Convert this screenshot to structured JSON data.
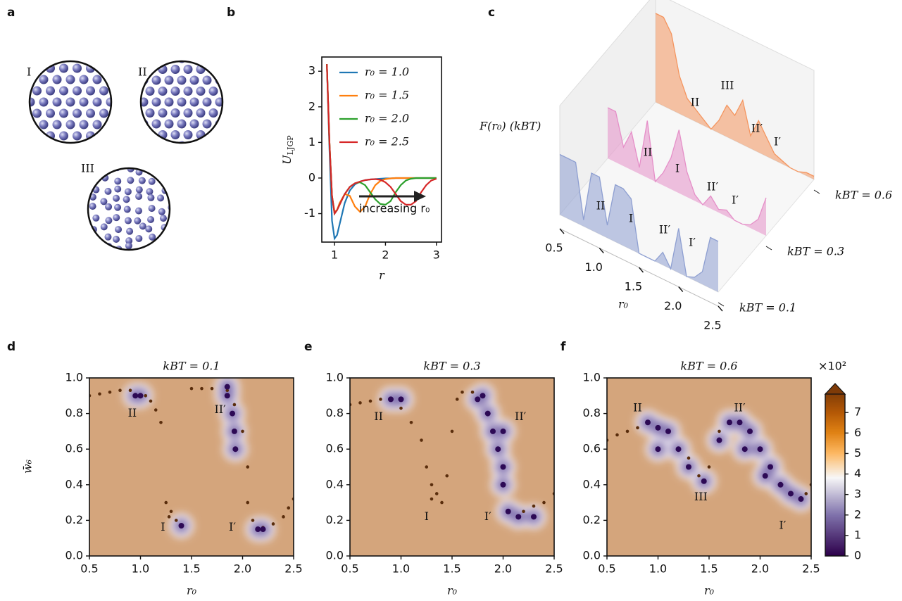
{
  "panel_labels": [
    "a",
    "b",
    "c",
    "d",
    "e",
    "f"
  ],
  "diagram": {
    "labels": [
      "I",
      "II",
      "III"
    ]
  },
  "chart_data": [
    {
      "type": "line",
      "ylabel": [
        "U",
        "LJGP"
      ],
      "xlabel": "r",
      "annotation": "increasing r₀",
      "x": [
        0.85,
        0.9,
        0.95,
        1.0,
        1.05,
        1.1,
        1.2,
        1.3,
        1.4,
        1.5,
        1.6,
        1.7,
        1.8,
        1.9,
        2.0,
        2.1,
        2.2,
        2.3,
        2.4,
        2.5,
        2.6,
        2.7,
        2.8,
        2.9,
        3.0
      ],
      "series": [
        {
          "name": "r₀ = 1.0",
          "color": "#1f77b4",
          "values": [
            3.2,
            0.8,
            -1.2,
            -1.7,
            -1.6,
            -1.3,
            -0.7,
            -0.35,
            -0.18,
            -0.1,
            -0.06,
            -0.04,
            -0.03,
            -0.02,
            -0.01,
            -0.01,
            0,
            0,
            0,
            0,
            0,
            0,
            0,
            0,
            0
          ]
        },
        {
          "name": "r₀ = 1.5",
          "color": "#ff7f0e",
          "values": [
            3.2,
            1.0,
            -0.5,
            -0.95,
            -0.9,
            -0.7,
            -0.45,
            -0.5,
            -0.8,
            -0.95,
            -0.8,
            -0.45,
            -0.2,
            -0.08,
            -0.03,
            -0.01,
            0,
            0,
            0,
            0,
            0,
            0,
            0,
            0,
            0
          ]
        },
        {
          "name": "r₀ = 2.0",
          "color": "#2ca02c",
          "values": [
            3.2,
            1.0,
            -0.5,
            -1.0,
            -0.9,
            -0.75,
            -0.45,
            -0.25,
            -0.15,
            -0.12,
            -0.2,
            -0.4,
            -0.6,
            -0.73,
            -0.75,
            -0.65,
            -0.4,
            -0.2,
            -0.07,
            -0.02,
            0,
            0,
            0,
            0,
            0
          ]
        },
        {
          "name": "r₀ = 2.5",
          "color": "#d62728",
          "values": [
            3.2,
            1.0,
            -0.5,
            -1.0,
            -0.9,
            -0.75,
            -0.45,
            -0.25,
            -0.15,
            -0.1,
            -0.06,
            -0.04,
            -0.03,
            -0.05,
            -0.12,
            -0.25,
            -0.45,
            -0.65,
            -0.75,
            -0.75,
            -0.65,
            -0.4,
            -0.2,
            -0.07,
            -0.02
          ]
        }
      ],
      "xlim": [
        0.75,
        3.1
      ],
      "ylim": [
        -1.8,
        3.4
      ],
      "xticks": [
        1,
        2,
        3
      ],
      "yticks": [
        -1,
        0,
        1,
        2,
        3
      ]
    },
    {
      "type": "ridge",
      "zlabel": "F(r₀) (kBT)",
      "xlabel": "r₀",
      "x": [
        0.5,
        0.6,
        0.7,
        0.8,
        0.9,
        1.0,
        1.1,
        1.2,
        1.3,
        1.4,
        1.5,
        1.6,
        1.7,
        1.8,
        1.9,
        2.0,
        2.1,
        2.2,
        2.3,
        2.4,
        2.5
      ],
      "xlim": [
        0.5,
        2.5
      ],
      "xticks": [
        0.5,
        {
          "value": 1,
          "label": "1.0"
        },
        1.5,
        {
          "value": 2,
          "label": "2.0"
        },
        2.5
      ],
      "series": [
        {
          "name": "kBT = 0.1",
          "color": "#8e9fd1",
          "values": [
            9.5,
            9.5,
            9.5,
            1,
            9,
            9,
            2,
            9,
            9,
            8,
            0,
            0,
            0,
            2,
            0,
            7,
            0,
            0.5,
            2,
            8,
            8
          ],
          "annotations": [
            "II",
            "I",
            "II′",
            "I′"
          ]
        },
        {
          "name": "kBT = 0.3",
          "color": "#e58fc8",
          "values": [
            8,
            8,
            3,
            6,
            1,
            9,
            0,
            2,
            5,
            10,
            4,
            1,
            0,
            2,
            0.5,
            1,
            0,
            0,
            0.5,
            2,
            6
          ],
          "annotations": [
            "II",
            "I",
            "II′",
            "I′"
          ]
        },
        {
          "name": "kBT = 0.6",
          "color": "#f4955f",
          "values": [
            14,
            14,
            12,
            6,
            3,
            2,
            1,
            0,
            2,
            5,
            4,
            7,
            2,
            5,
            3,
            1,
            0.5,
            0,
            0,
            0.5,
            0.5
          ],
          "annotations": [
            "II",
            "III",
            "II′",
            "I′"
          ]
        }
      ]
    },
    {
      "type": "scatter",
      "title": "kBT = 0.1",
      "xlabel": "r₀",
      "ylabel": "w̄₆",
      "xlim": [
        0.5,
        2.5
      ],
      "ylim": [
        0,
        1
      ],
      "xticks": [
        0.5,
        {
          "value": 1,
          "label": "1.0"
        },
        1.5,
        {
          "value": 2,
          "label": "2.0"
        },
        2.5
      ],
      "yticks": [
        {
          "value": 0,
          "label": "0.0"
        },
        0.2,
        0.4,
        0.6,
        0.8,
        {
          "value": 1,
          "label": "1.0"
        }
      ],
      "annotations": [
        "II",
        "II′",
        "I",
        "I′"
      ],
      "series": [
        {
          "color": "#5a2d0c",
          "style": "dots",
          "x": [
            0.5,
            0.6,
            0.7,
            0.8,
            0.9,
            1.05,
            1.1,
            1.15,
            1.2,
            1.25,
            1.3,
            1.35,
            1.5,
            1.6,
            1.7,
            1.85,
            2.0,
            2.05,
            2.05,
            2.1,
            2.2,
            2.3,
            2.4,
            2.45,
            2.5,
            1.28,
            1.92
          ],
          "y": [
            0.9,
            0.91,
            0.92,
            0.93,
            0.93,
            0.9,
            0.87,
            0.82,
            0.75,
            0.3,
            0.25,
            0.2,
            0.94,
            0.94,
            0.94,
            0.93,
            0.7,
            0.5,
            0.3,
            0.2,
            0.16,
            0.18,
            0.22,
            0.27,
            0.32,
            0.22,
            0.85
          ]
        },
        {
          "color": "#2d0a55",
          "style": "density",
          "x": [
            0.95,
            1.0,
            1.85,
            1.9,
            1.92,
            1.93,
            2.15,
            2.2,
            1.4,
            1.85
          ],
          "y": [
            0.9,
            0.9,
            0.9,
            0.8,
            0.7,
            0.6,
            0.15,
            0.15,
            0.17,
            0.95
          ]
        }
      ]
    },
    {
      "type": "scatter",
      "title": "kBT = 0.3",
      "xlabel": "r₀",
      "xlim": [
        0.5,
        2.5
      ],
      "ylim": [
        0,
        1
      ],
      "xticks": [
        0.5,
        {
          "value": 1,
          "label": "1.0"
        },
        1.5,
        {
          "value": 2,
          "label": "2.0"
        },
        2.5
      ],
      "yticks": [
        {
          "value": 0,
          "label": "0.0"
        },
        0.2,
        0.4,
        0.6,
        0.8,
        {
          "value": 1,
          "label": "1.0"
        }
      ],
      "annotations": [
        "II",
        "II′",
        "I",
        "I′"
      ],
      "series": [
        {
          "color": "#5a2d0c",
          "style": "dots",
          "x": [
            0.5,
            0.6,
            0.7,
            0.8,
            1.0,
            1.1,
            1.2,
            1.25,
            1.3,
            1.35,
            1.4,
            1.45,
            1.5,
            1.55,
            1.6,
            1.7,
            2.2,
            2.3,
            2.4,
            2.5,
            1.3
          ],
          "y": [
            0.85,
            0.86,
            0.87,
            0.88,
            0.83,
            0.75,
            0.65,
            0.5,
            0.4,
            0.35,
            0.3,
            0.45,
            0.7,
            0.88,
            0.92,
            0.92,
            0.25,
            0.28,
            0.3,
            0.35,
            0.32
          ]
        },
        {
          "color": "#2d0a55",
          "style": "density",
          "x": [
            0.9,
            1.0,
            1.8,
            1.85,
            1.9,
            1.95,
            2.0,
            2.0,
            2.05,
            2.15,
            2.3,
            1.75,
            2.0
          ],
          "y": [
            0.88,
            0.88,
            0.9,
            0.8,
            0.7,
            0.6,
            0.5,
            0.4,
            0.25,
            0.22,
            0.22,
            0.88,
            0.7
          ]
        }
      ]
    },
    {
      "type": "scatter",
      "title": "kBT = 0.6",
      "xlabel": "r₀",
      "xlim": [
        0.5,
        2.5
      ],
      "ylim": [
        0,
        1
      ],
      "xticks": [
        0.5,
        {
          "value": 1,
          "label": "1.0"
        },
        1.5,
        {
          "value": 2,
          "label": "2.0"
        },
        2.5
      ],
      "yticks": [
        {
          "value": 0,
          "label": "0.0"
        },
        0.2,
        0.4,
        0.6,
        0.8,
        {
          "value": 1,
          "label": "1.0"
        }
      ],
      "annotations": [
        "II",
        "II′",
        "III",
        "I′"
      ],
      "series": [
        {
          "color": "#5a2d0c",
          "style": "dots",
          "x": [
            0.5,
            0.6,
            0.7,
            0.8,
            1.3,
            1.4,
            1.5,
            1.6,
            2.45,
            2.5
          ],
          "y": [
            0.65,
            0.68,
            0.7,
            0.72,
            0.55,
            0.45,
            0.5,
            0.7,
            0.35,
            0.4
          ]
        },
        {
          "color": "#2d0a55",
          "style": "density",
          "x": [
            0.9,
            1.0,
            1.1,
            1.0,
            1.2,
            1.3,
            1.45,
            1.6,
            1.7,
            1.8,
            1.9,
            2.0,
            2.1,
            2.2,
            2.3,
            2.4,
            1.85,
            2.05
          ],
          "y": [
            0.75,
            0.72,
            0.7,
            0.6,
            0.6,
            0.5,
            0.42,
            0.65,
            0.75,
            0.75,
            0.7,
            0.6,
            0.5,
            0.4,
            0.35,
            0.32,
            0.6,
            0.45
          ]
        }
      ],
      "colorbar": {
        "label": "×10²",
        "lim": [
          0,
          7.9
        ],
        "ticks": [
          0,
          1,
          2,
          3,
          4,
          5,
          6,
          7
        ]
      }
    }
  ]
}
